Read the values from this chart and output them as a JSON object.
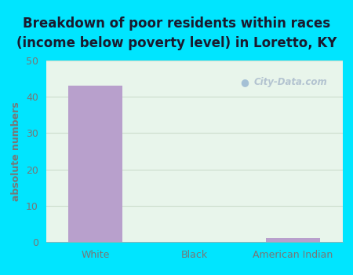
{
  "categories": [
    "White",
    "Black",
    "American Indian"
  ],
  "values": [
    43,
    0,
    1
  ],
  "bar_color": "#b8a0cc",
  "title_line1": "Breakdown of poor residents within races",
  "title_line2": "(income below poverty level) in Loretto, KY",
  "ylabel": "absolute numbers",
  "ylim": [
    0,
    50
  ],
  "yticks": [
    0,
    10,
    20,
    30,
    40,
    50
  ],
  "bg_outer": "#00e5ff",
  "bg_plot_top": "#f0f7f0",
  "bg_plot_bottom": "#e0f0e8",
  "tick_color": "#777777",
  "title_color": "#1a1a2e",
  "title_fontsize": 12,
  "label_fontsize": 9,
  "tick_fontsize": 9,
  "bar_width": 0.55,
  "watermark": "City-Data.com"
}
